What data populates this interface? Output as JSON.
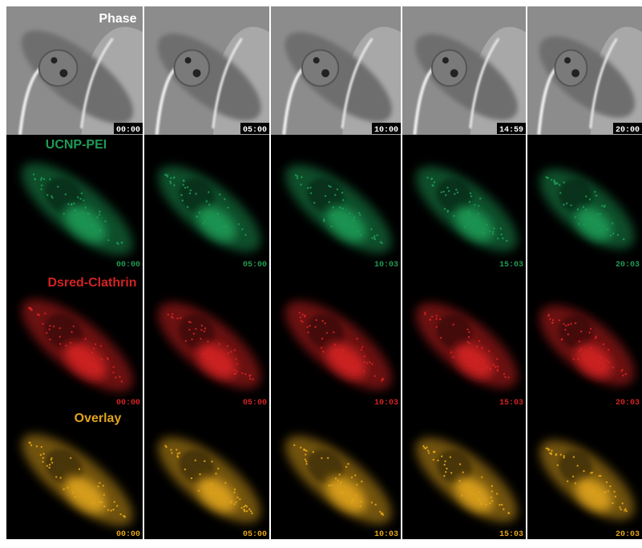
{
  "figure": {
    "rows": [
      {
        "label": "Phase",
        "times": [
          "00:00",
          "05:00",
          "10:00",
          "14:59",
          "20:00"
        ]
      },
      {
        "label": "UCNP-PEI",
        "times": [
          "00:00",
          "05:00",
          "10:03",
          "15:03",
          "20:03"
        ]
      },
      {
        "label": "Dsred-Clathrin",
        "times": [
          "00:00",
          "05:00",
          "10:03",
          "15:03",
          "20:03"
        ]
      },
      {
        "label": "Overlay",
        "times": [
          "00:00",
          "05:00",
          "10:03",
          "15:03",
          "20:03"
        ]
      }
    ]
  }
}
